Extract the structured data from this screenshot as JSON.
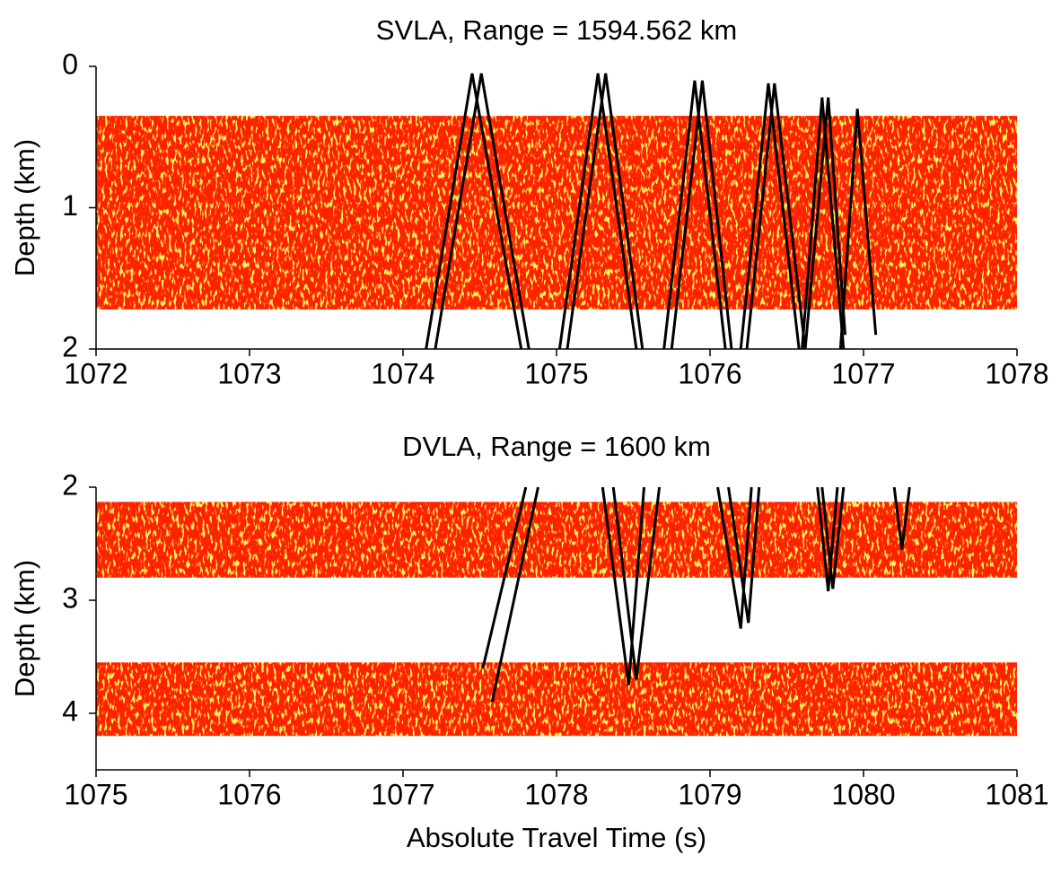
{
  "chart_data": [
    {
      "type": "heatmap",
      "title": "SVLA, Range = 1594.562 km",
      "y_label": "Depth (km)",
      "xlim": [
        1072,
        1078
      ],
      "xticks": [
        1072,
        1073,
        1074,
        1075,
        1076,
        1077,
        1078
      ],
      "ylim": [
        0,
        2
      ],
      "yticks": [
        0,
        1,
        2
      ],
      "y_inverted": true,
      "bands": [
        [
          0.35,
          1.72
        ]
      ],
      "band_color": "#ff2200",
      "series": [
        {
          "color": "#000000",
          "x": [
            1074.15,
            1074.45,
            1074.77
          ],
          "values": [
            2,
            0.05,
            2
          ]
        },
        {
          "color": "#000000",
          "x": [
            1074.21,
            1074.51,
            1074.82
          ],
          "values": [
            2,
            0.05,
            2
          ]
        },
        {
          "color": "#000000",
          "x": [
            1075.02,
            1075.27,
            1075.52
          ],
          "values": [
            2,
            0.05,
            2
          ]
        },
        {
          "color": "#000000",
          "x": [
            1075.07,
            1075.32,
            1075.56
          ],
          "values": [
            2,
            0.05,
            2
          ]
        },
        {
          "color": "#000000",
          "x": [
            1075.7,
            1075.9,
            1076.1
          ],
          "values": [
            2,
            0.1,
            2
          ]
        },
        {
          "color": "#000000",
          "x": [
            1075.75,
            1075.95,
            1076.14
          ],
          "values": [
            2,
            0.1,
            2
          ]
        },
        {
          "color": "#000000",
          "x": [
            1076.2,
            1076.38,
            1076.58
          ],
          "values": [
            2,
            0.12,
            2
          ]
        },
        {
          "color": "#000000",
          "x": [
            1076.24,
            1076.42,
            1076.62
          ],
          "values": [
            2,
            0.12,
            2
          ]
        },
        {
          "color": "#000000",
          "x": [
            1076.6,
            1076.73,
            1076.87
          ],
          "values": [
            2,
            0.22,
            2
          ]
        },
        {
          "color": "#000000",
          "x": [
            1076.62,
            1076.77,
            1076.88
          ],
          "values": [
            2,
            0.22,
            1.9
          ]
        },
        {
          "color": "#000000",
          "x": [
            1076.85,
            1076.96,
            1077.08
          ],
          "values": [
            2,
            0.3,
            1.9
          ]
        }
      ]
    },
    {
      "type": "heatmap",
      "title": "DVLA, Range = 1600 km",
      "y_label": "Depth (km)",
      "x_label": "Absolute Travel Time (s)",
      "xlim": [
        1075,
        1081
      ],
      "xticks": [
        1075,
        1076,
        1077,
        1078,
        1079,
        1080,
        1081
      ],
      "ylim": [
        2,
        4.5
      ],
      "yticks": [
        2,
        3,
        4
      ],
      "y_inverted": true,
      "bands": [
        [
          2.13,
          2.8
        ],
        [
          3.55,
          4.2
        ]
      ],
      "band_color": "#ff2200",
      "series": [
        {
          "color": "#000000",
          "x": [
            1077.52,
            1077.8
          ],
          "values": [
            3.6,
            2
          ]
        },
        {
          "color": "#000000",
          "x": [
            1077.58,
            1077.88
          ],
          "values": [
            3.9,
            2
          ]
        },
        {
          "color": "#000000",
          "x": [
            1078.3,
            1078.47,
            1078.57
          ],
          "values": [
            2,
            3.75,
            2
          ]
        },
        {
          "color": "#000000",
          "x": [
            1078.37,
            1078.52,
            1078.67
          ],
          "values": [
            2,
            3.7,
            2
          ]
        },
        {
          "color": "#000000",
          "x": [
            1079.05,
            1079.2,
            1079.27
          ],
          "values": [
            2,
            3.25,
            2
          ]
        },
        {
          "color": "#000000",
          "x": [
            1079.12,
            1079.25,
            1079.32
          ],
          "values": [
            2,
            3.2,
            2
          ]
        },
        {
          "color": "#000000",
          "x": [
            1079.7,
            1079.77,
            1079.83
          ],
          "values": [
            2,
            2.92,
            2
          ]
        },
        {
          "color": "#000000",
          "x": [
            1079.73,
            1079.8,
            1079.87
          ],
          "values": [
            2,
            2.9,
            2
          ]
        },
        {
          "color": "#000000",
          "x": [
            1080.2,
            1080.25,
            1080.3
          ],
          "values": [
            2,
            2.55,
            2
          ]
        }
      ]
    }
  ]
}
